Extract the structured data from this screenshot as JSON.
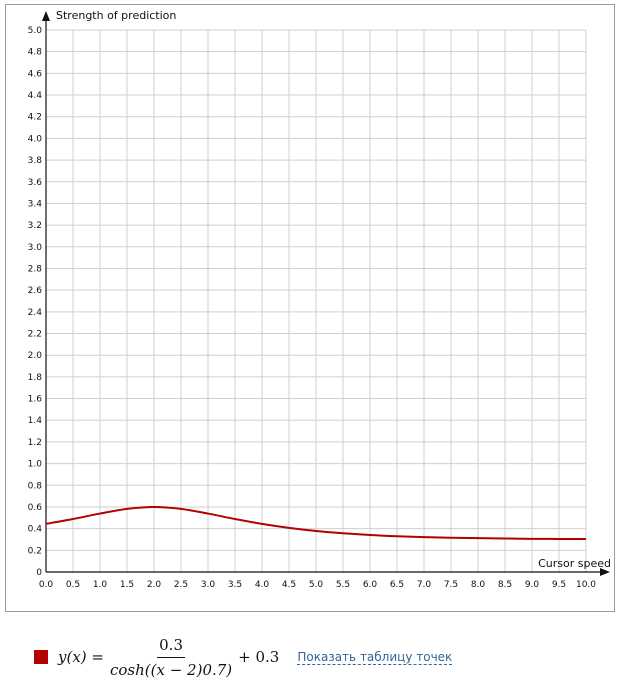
{
  "chart_data": {
    "type": "line",
    "xlabel": "Cursor speed",
    "ylabel": "Strength of prediction",
    "xlim": [
      0,
      10
    ],
    "ylim": [
      0,
      5
    ],
    "x_ticks": [
      "0.0",
      "0.5",
      "1.0",
      "1.5",
      "2.0",
      "2.5",
      "3.0",
      "3.5",
      "4.0",
      "4.5",
      "5.0",
      "5.5",
      "6.0",
      "6.5",
      "7.0",
      "7.5",
      "8.0",
      "8.5",
      "9.0",
      "9.5",
      "10.0"
    ],
    "y_ticks": [
      "0",
      "0.2",
      "0.4",
      "0.6",
      "0.8",
      "1.0",
      "1.2",
      "1.4",
      "1.6",
      "1.8",
      "2.0",
      "2.2",
      "2.4",
      "2.6",
      "2.8",
      "3.0",
      "3.2",
      "3.4",
      "3.6",
      "3.8",
      "4.0",
      "4.2",
      "4.4",
      "4.6",
      "4.8",
      "5.0"
    ],
    "grid": true,
    "series": [
      {
        "color": "#b30000",
        "x": [
          0,
          0.5,
          1,
          1.5,
          2,
          2.5,
          3,
          3.5,
          4,
          4.5,
          5,
          5.5,
          6,
          6.5,
          7,
          7.5,
          8,
          8.5,
          9,
          9.5,
          10
        ],
        "y": [
          0.444,
          0.489,
          0.539,
          0.582,
          0.6,
          0.582,
          0.539,
          0.489,
          0.444,
          0.407,
          0.378,
          0.357,
          0.341,
          0.33,
          0.322,
          0.316,
          0.312,
          0.309,
          0.306,
          0.305,
          0.304
        ]
      }
    ]
  },
  "legend": {
    "swatch_color": "#b30000",
    "formula": {
      "lhs": "y(x) =",
      "numerator": "0.3",
      "denominator": "cosh((x − 2)0.7)",
      "tail": "+ 0.3"
    },
    "link_label": "Показать таблицу точек"
  }
}
